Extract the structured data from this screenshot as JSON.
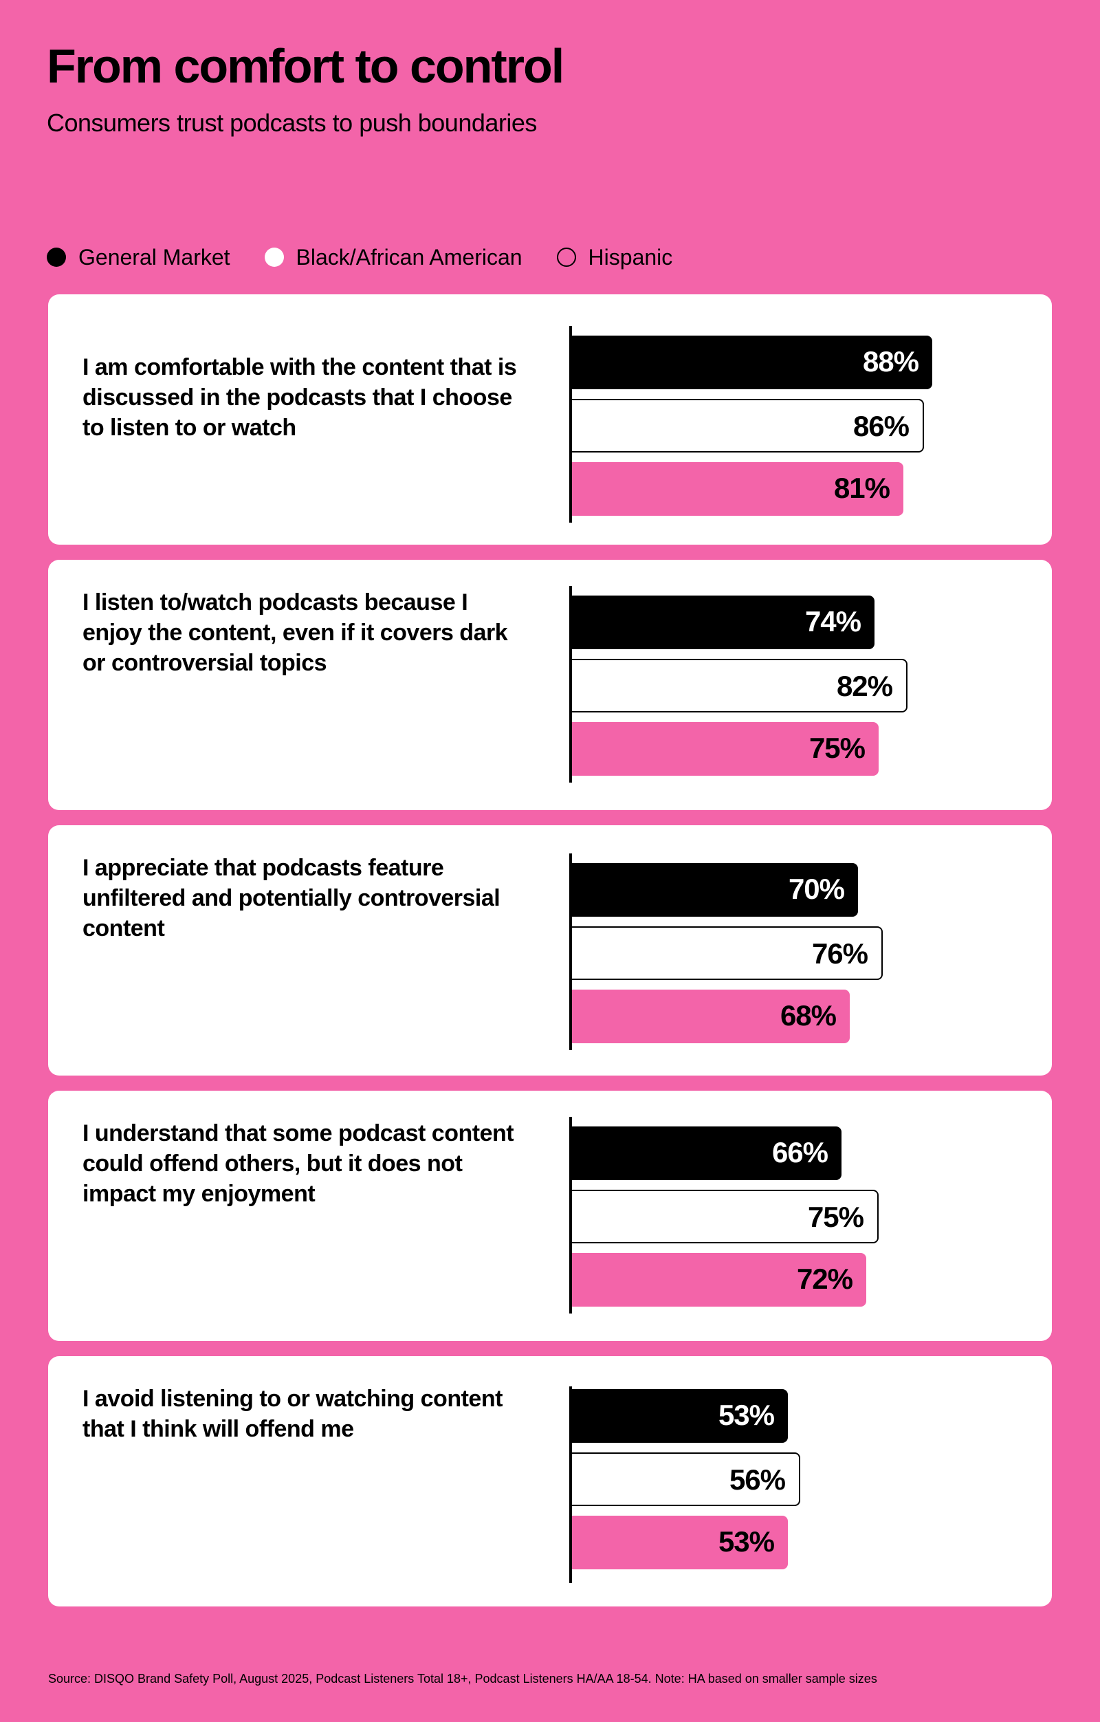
{
  "colors": {
    "background": "#f364a9",
    "general_market": "#000000",
    "black_african_american": "#ffffff",
    "hispanic": "#f364a9"
  },
  "title": "From comfort to control",
  "subtitle": "Consumers trust podcasts to push boundaries",
  "legend": [
    {
      "label": "General Market",
      "style": "filled-black"
    },
    {
      "label": "Black/African American",
      "style": "filled-white"
    },
    {
      "label": "Hispanic",
      "style": "outlined"
    }
  ],
  "source": "Source:  DISQO Brand Safety Poll, August 2025, Podcast Listeners Total 18+, Podcast Listeners HA/AA 18-54. Note: HA based on smaller sample sizes",
  "chart_data": {
    "type": "bar",
    "orientation": "horizontal",
    "unit": "%",
    "categories": [
      "I am comfortable with the content that is discussed in the podcasts that I choose to listen to or watch",
      "I listen to/watch podcasts because I enjoy the content, even if it covers dark or controversial topics",
      "I appreciate that podcasts feature unfiltered and potentially controversial content",
      "I understand that some podcast content could offend others, but it does not impact my enjoyment",
      "I avoid listening to or watching content that I think will offend me"
    ],
    "series": [
      {
        "name": "General Market",
        "values": [
          88,
          74,
          70,
          66,
          53
        ],
        "labels": [
          "88%",
          "74%",
          "70%",
          "66%",
          "53%"
        ]
      },
      {
        "name": "Black/African American",
        "values": [
          86,
          82,
          76,
          75,
          56
        ],
        "labels": [
          "86%",
          "82%",
          "76%",
          "75%",
          "56%"
        ]
      },
      {
        "name": "Hispanic",
        "values": [
          81,
          75,
          68,
          72,
          53
        ],
        "labels": [
          "81%",
          "75%",
          "68%",
          "72%",
          "53%"
        ]
      }
    ],
    "xlim": [
      0,
      100
    ],
    "grid": false,
    "legend_position": "top-left"
  }
}
